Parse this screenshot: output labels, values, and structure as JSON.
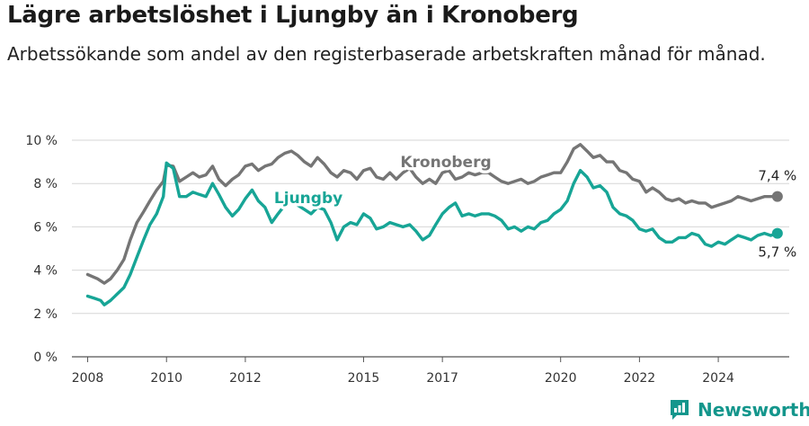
{
  "title": "Lägre arbetslöshet i Ljungby än i Kronoberg",
  "subtitle": "Arbetssökande som andel av den registerbaserade arbetskraften månad för månad.",
  "brand": "Newsworthy",
  "chart_data": {
    "type": "line",
    "title": "Lägre arbetslöshet i Ljungby än i Kronoberg",
    "subtitle": "Arbetssökande som andel av den registerbaserade arbetskraften månad för månad.",
    "xlabel": "",
    "ylabel": "",
    "xlim": [
      2007.6,
      2025.8
    ],
    "ylim": [
      0,
      10
    ],
    "grid": true,
    "x_ticks": [
      2008,
      2010,
      2012,
      2015,
      2017,
      2020,
      2022,
      2024
    ],
    "y_ticks": [
      {
        "value": 0,
        "label": "0 %"
      },
      {
        "value": 2,
        "label": "2 %"
      },
      {
        "value": 4,
        "label": "4 %"
      },
      {
        "value": 6,
        "label": "6 %"
      },
      {
        "value": 8,
        "label": "8 %"
      },
      {
        "value": 10,
        "label": "10 %"
      }
    ],
    "colors": {
      "Kronoberg": "#757575",
      "Ljungby": "#17a596"
    },
    "series": [
      {
        "name": "Kronoberg",
        "end_label": "7,4 %",
        "points": [
          [
            2008.0,
            3.8
          ],
          [
            2008.25,
            3.6
          ],
          [
            2008.42,
            3.4
          ],
          [
            2008.58,
            3.6
          ],
          [
            2008.75,
            4.0
          ],
          [
            2008.92,
            4.5
          ],
          [
            2009.08,
            5.4
          ],
          [
            2009.25,
            6.2
          ],
          [
            2009.42,
            6.7
          ],
          [
            2009.58,
            7.2
          ],
          [
            2009.75,
            7.7
          ],
          [
            2009.92,
            8.1
          ],
          [
            2010.0,
            8.85
          ],
          [
            2010.17,
            8.8
          ],
          [
            2010.33,
            8.1
          ],
          [
            2010.5,
            8.3
          ],
          [
            2010.67,
            8.5
          ],
          [
            2010.83,
            8.3
          ],
          [
            2011.0,
            8.4
          ],
          [
            2011.17,
            8.8
          ],
          [
            2011.33,
            8.2
          ],
          [
            2011.5,
            7.9
          ],
          [
            2011.67,
            8.2
          ],
          [
            2011.83,
            8.4
          ],
          [
            2012.0,
            8.8
          ],
          [
            2012.17,
            8.9
          ],
          [
            2012.33,
            8.6
          ],
          [
            2012.5,
            8.8
          ],
          [
            2012.67,
            8.9
          ],
          [
            2012.83,
            9.2
          ],
          [
            2013.0,
            9.4
          ],
          [
            2013.17,
            9.5
          ],
          [
            2013.33,
            9.3
          ],
          [
            2013.5,
            9.0
          ],
          [
            2013.67,
            8.8
          ],
          [
            2013.83,
            9.2
          ],
          [
            2014.0,
            8.9
          ],
          [
            2014.17,
            8.5
          ],
          [
            2014.33,
            8.3
          ],
          [
            2014.5,
            8.6
          ],
          [
            2014.67,
            8.5
          ],
          [
            2014.83,
            8.2
          ],
          [
            2015.0,
            8.6
          ],
          [
            2015.17,
            8.7
          ],
          [
            2015.33,
            8.3
          ],
          [
            2015.5,
            8.2
          ],
          [
            2015.67,
            8.5
          ],
          [
            2015.83,
            8.2
          ],
          [
            2016.0,
            8.5
          ],
          [
            2016.17,
            8.7
          ],
          [
            2016.33,
            8.3
          ],
          [
            2016.5,
            8.0
          ],
          [
            2016.67,
            8.2
          ],
          [
            2016.83,
            8.0
          ],
          [
            2017.0,
            8.5
          ],
          [
            2017.17,
            8.6
          ],
          [
            2017.33,
            8.2
          ],
          [
            2017.5,
            8.3
          ],
          [
            2017.67,
            8.5
          ],
          [
            2017.83,
            8.4
          ],
          [
            2018.0,
            8.5
          ],
          [
            2018.17,
            8.5
          ],
          [
            2018.33,
            8.3
          ],
          [
            2018.5,
            8.1
          ],
          [
            2018.67,
            8.0
          ],
          [
            2018.83,
            8.1
          ],
          [
            2019.0,
            8.2
          ],
          [
            2019.17,
            8.0
          ],
          [
            2019.33,
            8.1
          ],
          [
            2019.5,
            8.3
          ],
          [
            2019.67,
            8.4
          ],
          [
            2019.83,
            8.5
          ],
          [
            2020.0,
            8.5
          ],
          [
            2020.17,
            9.0
          ],
          [
            2020.33,
            9.6
          ],
          [
            2020.5,
            9.8
          ],
          [
            2020.67,
            9.5
          ],
          [
            2020.83,
            9.2
          ],
          [
            2021.0,
            9.3
          ],
          [
            2021.17,
            9.0
          ],
          [
            2021.33,
            9.0
          ],
          [
            2021.5,
            8.6
          ],
          [
            2021.67,
            8.5
          ],
          [
            2021.83,
            8.2
          ],
          [
            2022.0,
            8.1
          ],
          [
            2022.17,
            7.6
          ],
          [
            2022.33,
            7.8
          ],
          [
            2022.5,
            7.6
          ],
          [
            2022.67,
            7.3
          ],
          [
            2022.83,
            7.2
          ],
          [
            2023.0,
            7.3
          ],
          [
            2023.17,
            7.1
          ],
          [
            2023.33,
            7.2
          ],
          [
            2023.5,
            7.1
          ],
          [
            2023.67,
            7.1
          ],
          [
            2023.83,
            6.9
          ],
          [
            2024.0,
            7.0
          ],
          [
            2024.17,
            7.1
          ],
          [
            2024.33,
            7.2
          ],
          [
            2024.5,
            7.4
          ],
          [
            2024.67,
            7.3
          ],
          [
            2024.83,
            7.2
          ],
          [
            2025.0,
            7.3
          ],
          [
            2025.17,
            7.4
          ],
          [
            2025.33,
            7.4
          ],
          [
            2025.5,
            7.4
          ]
        ]
      },
      {
        "name": "Ljungby",
        "end_label": "5,7 %",
        "points": [
          [
            2008.0,
            2.8
          ],
          [
            2008.17,
            2.7
          ],
          [
            2008.33,
            2.6
          ],
          [
            2008.42,
            2.4
          ],
          [
            2008.58,
            2.6
          ],
          [
            2008.75,
            2.9
          ],
          [
            2008.92,
            3.2
          ],
          [
            2009.08,
            3.8
          ],
          [
            2009.25,
            4.6
          ],
          [
            2009.42,
            5.4
          ],
          [
            2009.58,
            6.1
          ],
          [
            2009.75,
            6.6
          ],
          [
            2009.92,
            7.4
          ],
          [
            2010.0,
            8.95
          ],
          [
            2010.17,
            8.7
          ],
          [
            2010.33,
            7.4
          ],
          [
            2010.5,
            7.4
          ],
          [
            2010.67,
            7.6
          ],
          [
            2010.83,
            7.5
          ],
          [
            2011.0,
            7.4
          ],
          [
            2011.17,
            8.0
          ],
          [
            2011.33,
            7.5
          ],
          [
            2011.5,
            6.9
          ],
          [
            2011.67,
            6.5
          ],
          [
            2011.83,
            6.8
          ],
          [
            2012.0,
            7.3
          ],
          [
            2012.17,
            7.7
          ],
          [
            2012.33,
            7.2
          ],
          [
            2012.5,
            6.9
          ],
          [
            2012.67,
            6.2
          ],
          [
            2012.83,
            6.6
          ],
          [
            2013.0,
            7.0
          ],
          [
            2013.17,
            7.2
          ],
          [
            2013.33,
            7.0
          ],
          [
            2013.5,
            6.8
          ],
          [
            2013.67,
            6.6
          ],
          [
            2013.83,
            6.9
          ],
          [
            2014.0,
            6.8
          ],
          [
            2014.17,
            6.2
          ],
          [
            2014.33,
            5.4
          ],
          [
            2014.5,
            6.0
          ],
          [
            2014.67,
            6.2
          ],
          [
            2014.83,
            6.1
          ],
          [
            2015.0,
            6.6
          ],
          [
            2015.17,
            6.4
          ],
          [
            2015.33,
            5.9
          ],
          [
            2015.5,
            6.0
          ],
          [
            2015.67,
            6.2
          ],
          [
            2015.83,
            6.1
          ],
          [
            2016.0,
            6.0
          ],
          [
            2016.17,
            6.1
          ],
          [
            2016.33,
            5.8
          ],
          [
            2016.5,
            5.4
          ],
          [
            2016.67,
            5.6
          ],
          [
            2016.83,
            6.1
          ],
          [
            2017.0,
            6.6
          ],
          [
            2017.17,
            6.9
          ],
          [
            2017.33,
            7.1
          ],
          [
            2017.5,
            6.5
          ],
          [
            2017.67,
            6.6
          ],
          [
            2017.83,
            6.5
          ],
          [
            2018.0,
            6.6
          ],
          [
            2018.17,
            6.6
          ],
          [
            2018.33,
            6.5
          ],
          [
            2018.5,
            6.3
          ],
          [
            2018.67,
            5.9
          ],
          [
            2018.83,
            6.0
          ],
          [
            2019.0,
            5.8
          ],
          [
            2019.17,
            6.0
          ],
          [
            2019.33,
            5.9
          ],
          [
            2019.5,
            6.2
          ],
          [
            2019.67,
            6.3
          ],
          [
            2019.83,
            6.6
          ],
          [
            2020.0,
            6.8
          ],
          [
            2020.17,
            7.2
          ],
          [
            2020.33,
            8.0
          ],
          [
            2020.5,
            8.6
          ],
          [
            2020.67,
            8.3
          ],
          [
            2020.83,
            7.8
          ],
          [
            2021.0,
            7.9
          ],
          [
            2021.17,
            7.6
          ],
          [
            2021.33,
            6.9
          ],
          [
            2021.5,
            6.6
          ],
          [
            2021.67,
            6.5
          ],
          [
            2021.83,
            6.3
          ],
          [
            2022.0,
            5.9
          ],
          [
            2022.17,
            5.8
          ],
          [
            2022.33,
            5.9
          ],
          [
            2022.5,
            5.5
          ],
          [
            2022.67,
            5.3
          ],
          [
            2022.83,
            5.3
          ],
          [
            2023.0,
            5.5
          ],
          [
            2023.17,
            5.5
          ],
          [
            2023.33,
            5.7
          ],
          [
            2023.5,
            5.6
          ],
          [
            2023.67,
            5.2
          ],
          [
            2023.83,
            5.1
          ],
          [
            2024.0,
            5.3
          ],
          [
            2024.17,
            5.2
          ],
          [
            2024.33,
            5.4
          ],
          [
            2024.5,
            5.6
          ],
          [
            2024.67,
            5.5
          ],
          [
            2024.83,
            5.4
          ],
          [
            2025.0,
            5.6
          ],
          [
            2025.17,
            5.7
          ],
          [
            2025.33,
            5.6
          ],
          [
            2025.5,
            5.7
          ]
        ]
      }
    ]
  }
}
